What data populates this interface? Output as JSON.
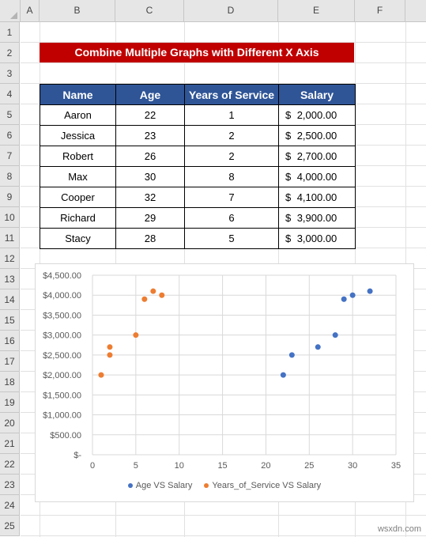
{
  "columns": [
    "A",
    "B",
    "C",
    "D",
    "E",
    "F"
  ],
  "rows": [
    "1",
    "2",
    "3",
    "4",
    "5",
    "6",
    "7",
    "8",
    "9",
    "10",
    "11",
    "12",
    "13",
    "14",
    "15",
    "16",
    "17",
    "18",
    "19",
    "20",
    "21",
    "22",
    "23",
    "24",
    "25"
  ],
  "title": "Combine Multiple Graphs with Different X Axis",
  "table": {
    "headers": [
      "Name",
      "Age",
      "Years of Service",
      "Salary"
    ],
    "currency_symbol": "$",
    "rows": [
      {
        "name": "Aaron",
        "age": "22",
        "years": "1",
        "salary": "2,000.00"
      },
      {
        "name": "Jessica",
        "age": "23",
        "years": "2",
        "salary": "2,500.00"
      },
      {
        "name": "Robert",
        "age": "26",
        "years": "2",
        "salary": "2,700.00"
      },
      {
        "name": "Max",
        "age": "30",
        "years": "8",
        "salary": "4,000.00"
      },
      {
        "name": "Cooper",
        "age": "32",
        "years": "7",
        "salary": "4,100.00"
      },
      {
        "name": "Richard",
        "age": "29",
        "years": "6",
        "salary": "3,900.00"
      },
      {
        "name": "Stacy",
        "age": "28",
        "years": "5",
        "salary": "3,000.00"
      }
    ]
  },
  "chart_data": {
    "type": "scatter",
    "title": "",
    "xlabel": "",
    "ylabel": "",
    "xlim": [
      0,
      35
    ],
    "ylim": [
      0,
      4500
    ],
    "x_ticks": [
      "0",
      "5",
      "10",
      "15",
      "20",
      "25",
      "30",
      "35"
    ],
    "y_ticks": [
      "$-",
      "$500.00",
      "$1,000.00",
      "$1,500.00",
      "$2,000.00",
      "$2,500.00",
      "$3,000.00",
      "$3,500.00",
      "$4,000.00",
      "$4,500.00"
    ],
    "grid": true,
    "legend_position": "bottom",
    "series": [
      {
        "name": "Age VS Salary",
        "color": "#4472c4",
        "points": [
          [
            22,
            2000
          ],
          [
            23,
            2500
          ],
          [
            26,
            2700
          ],
          [
            30,
            4000
          ],
          [
            32,
            4100
          ],
          [
            29,
            3900
          ],
          [
            28,
            3000
          ]
        ]
      },
      {
        "name": "Years_of_Service VS Salary",
        "color": "#ed7d31",
        "points": [
          [
            1,
            2000
          ],
          [
            2,
            2500
          ],
          [
            2,
            2700
          ],
          [
            8,
            4000
          ],
          [
            7,
            4100
          ],
          [
            6,
            3900
          ],
          [
            5,
            3000
          ]
        ]
      }
    ]
  },
  "watermark": "wsxdn.com"
}
